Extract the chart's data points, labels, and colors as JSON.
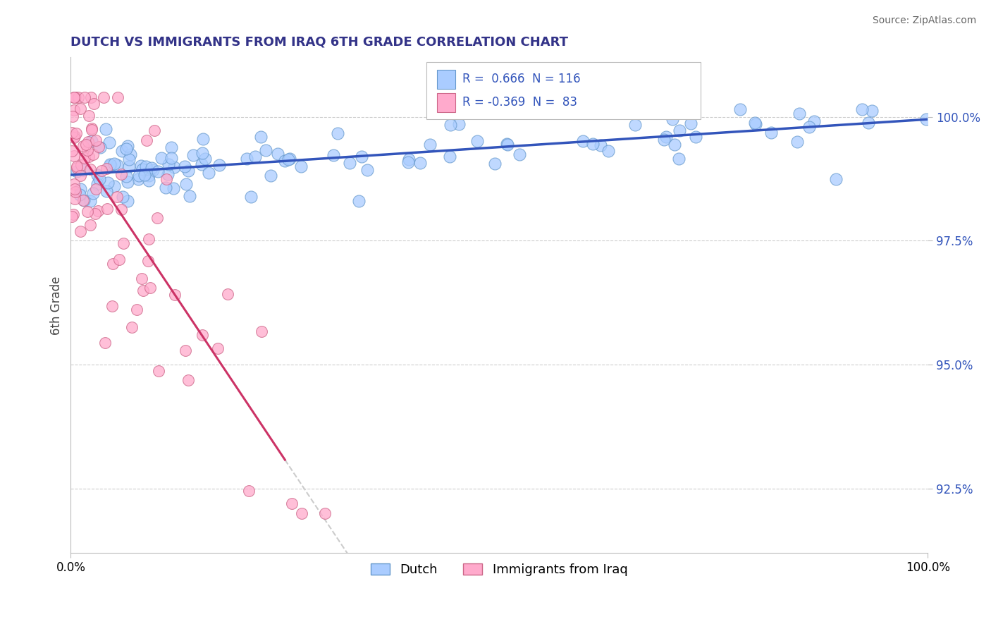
{
  "title": "DUTCH VS IMMIGRANTS FROM IRAQ 6TH GRADE CORRELATION CHART",
  "source": "Source: ZipAtlas.com",
  "ylabel": "6th Grade",
  "yticks": [
    92.5,
    95.0,
    97.5,
    100.0
  ],
  "ytick_labels": [
    "92.5%",
    "95.0%",
    "97.5%",
    "100.0%"
  ],
  "xlim": [
    0.0,
    100.0
  ],
  "ylim": [
    91.2,
    101.2
  ],
  "legend_dutch_r": "0.666",
  "legend_dutch_n": "116",
  "legend_iraq_r": "-0.369",
  "legend_iraq_n": "83",
  "legend_labels": [
    "Dutch",
    "Immigrants from Iraq"
  ],
  "dutch_color": "#aaccff",
  "iraq_color": "#ffaacc",
  "dutch_edge_color": "#6699cc",
  "iraq_edge_color": "#cc6688",
  "trendline_dutch_color": "#3355bb",
  "trendline_iraq_color": "#cc3366",
  "diagonal_color": "#cccccc",
  "text_color": "#3355bb",
  "title_color": "#333388",
  "background_color": "#ffffff",
  "dutch_seed": 123,
  "iraq_seed": 456
}
